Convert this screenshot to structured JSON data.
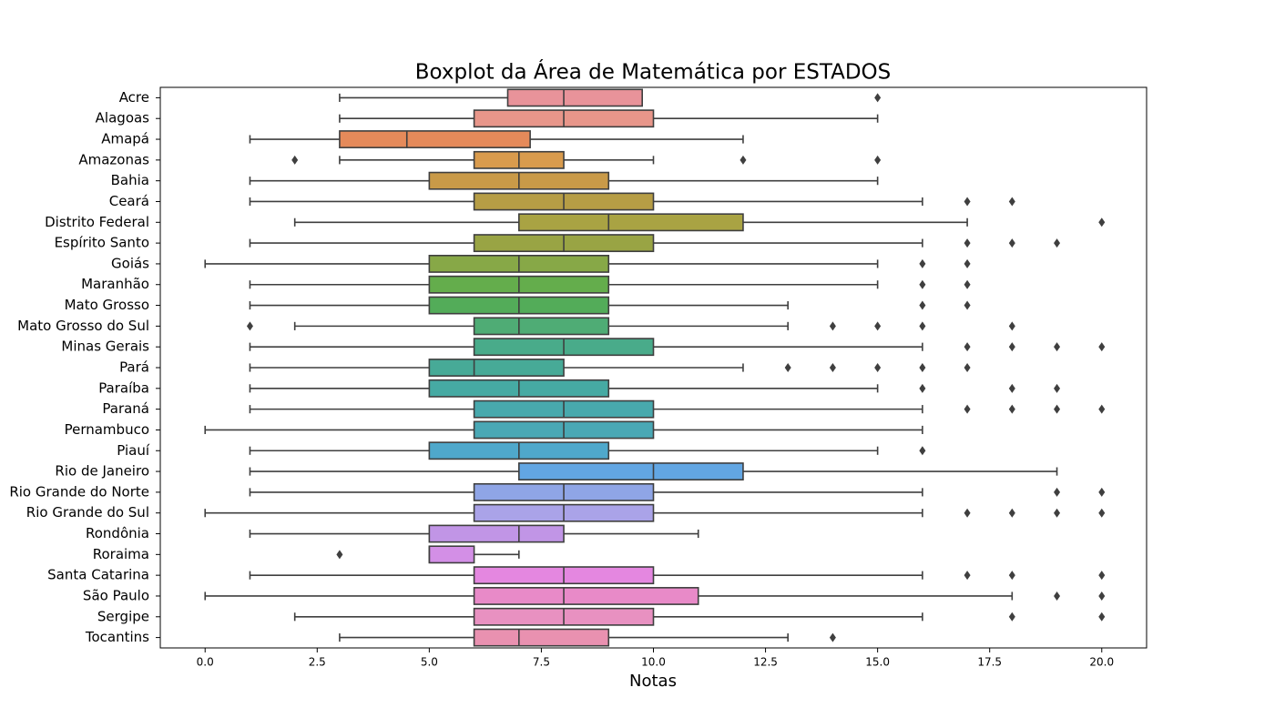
{
  "chart_data": {
    "type": "box",
    "title": "Boxplot da Área de Matemática por ESTADOS",
    "xlabel": "Notas",
    "categories": [
      "Acre",
      "Alagoas",
      "Amapá",
      "Amazonas",
      "Bahia",
      "Ceará",
      "Distrito Federal",
      "Espírito Santo",
      "Goiás",
      "Maranhão",
      "Mato Grosso",
      "Mato Grosso do Sul",
      "Minas Gerais",
      "Pará",
      "Paraíba",
      "Paraná",
      "Pernambuco",
      "Piauí",
      "Rio de Janeiro",
      "Rio Grande do Norte",
      "Rio Grande do Sul",
      "Rondônia",
      "Roraima",
      "Santa Catarina",
      "São Paulo",
      "Sergipe",
      "Tocantins"
    ],
    "whisker_low": [
      3,
      3,
      1,
      3,
      1,
      1,
      2,
      1,
      0,
      1,
      1,
      2,
      1,
      1,
      1,
      1,
      0,
      1,
      1,
      1,
      0,
      1,
      5,
      1,
      0,
      2,
      3
    ],
    "q1": [
      6.75,
      6,
      3,
      6,
      5,
      6,
      7,
      6,
      5,
      5,
      5,
      6,
      6,
      5,
      5,
      6,
      6,
      5,
      7,
      6,
      6,
      5,
      5,
      6,
      6,
      6,
      6
    ],
    "median": [
      8,
      8,
      4.5,
      7,
      7,
      8,
      9,
      8,
      7,
      7,
      7,
      7,
      8,
      6,
      7,
      8,
      8,
      7,
      10,
      8,
      8,
      7,
      5,
      8,
      8,
      8,
      7
    ],
    "q3": [
      9.75,
      10,
      7.25,
      8,
      9,
      10,
      12,
      10,
      9,
      9,
      9,
      9,
      10,
      8,
      9,
      10,
      10,
      9,
      12,
      10,
      10,
      8,
      6,
      10,
      11,
      10,
      9
    ],
    "whisker_high": [
      9.75,
      15,
      12,
      10,
      15,
      16,
      17,
      16,
      15,
      15,
      13,
      13,
      16,
      12,
      15,
      16,
      16,
      15,
      19,
      16,
      16,
      11,
      7,
      16,
      18,
      16,
      13
    ],
    "outliers": [
      [
        15
      ],
      [],
      [],
      [
        2,
        12,
        15
      ],
      [],
      [
        17,
        18
      ],
      [
        20
      ],
      [
        17,
        18,
        19
      ],
      [
        16,
        17
      ],
      [
        16,
        17
      ],
      [
        16,
        17
      ],
      [
        1,
        14,
        15,
        16,
        18
      ],
      [
        17,
        18,
        19,
        20
      ],
      [
        13,
        14,
        15,
        16,
        17
      ],
      [
        16,
        18,
        19
      ],
      [
        17,
        18,
        19,
        20
      ],
      [],
      [
        16
      ],
      [],
      [
        19,
        20
      ],
      [
        17,
        18,
        19,
        20
      ],
      [],
      [
        3
      ],
      [
        17,
        18,
        20
      ],
      [
        19,
        20
      ],
      [
        18,
        20
      ],
      [
        14
      ]
    ],
    "colors": [
      "#e8939a",
      "#e8968a",
      "#e58a5a",
      "#d99b4d",
      "#c99a48",
      "#b69d45",
      "#a9a343",
      "#99a444",
      "#87a847",
      "#64ad4c",
      "#53ac59",
      "#4fac75",
      "#49ab8a",
      "#47aa97",
      "#46aaa3",
      "#48a9ad",
      "#4aa8b5",
      "#4fa8cb",
      "#62a6e3",
      "#8fa5e6",
      "#aaa3e8",
      "#c195e6",
      "#d38fe6",
      "#e487e0",
      "#e88ac8",
      "#e891c1",
      "#e991b0"
    ],
    "xlim": [
      -1,
      21
    ],
    "xticks": [
      {
        "value": 0,
        "label": "0.0"
      },
      {
        "value": 2.5,
        "label": "2.5"
      },
      {
        "value": 5,
        "label": "5.0"
      },
      {
        "value": 7.5,
        "label": "7.5"
      },
      {
        "value": 10,
        "label": "10.0"
      },
      {
        "value": 12.5,
        "label": "12.5"
      },
      {
        "value": 15,
        "label": "15.0"
      },
      {
        "value": 17.5,
        "label": "17.5"
      },
      {
        "value": 20,
        "label": "20.0"
      }
    ]
  }
}
